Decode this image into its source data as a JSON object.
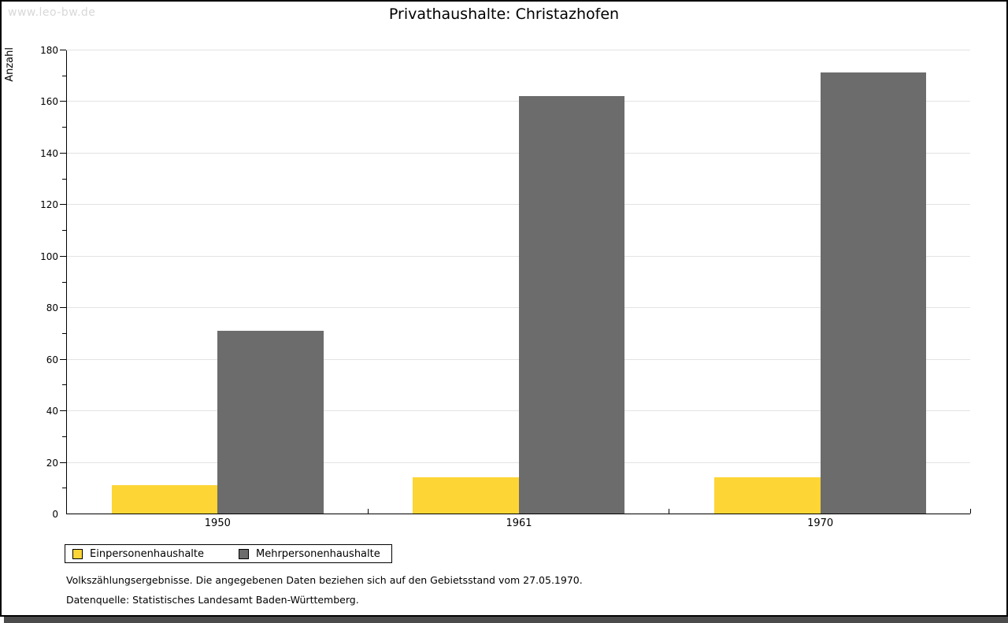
{
  "watermark": "www.leo-bw.de",
  "chart_data": {
    "type": "bar",
    "title": "Privathaushalte: Christazhofen",
    "ylabel": "Anzahl",
    "xlabel": "",
    "categories": [
      "1950",
      "1961",
      "1970"
    ],
    "series": [
      {
        "name": "Einpersonenhaushalte",
        "color": "#FDD535",
        "values": [
          11,
          14,
          14
        ]
      },
      {
        "name": "Mehrpersonenhaushalte",
        "color": "#6C6C6C",
        "values": [
          71,
          162,
          171
        ]
      }
    ],
    "ylim": [
      0,
      180
    ],
    "ytick_step": 20,
    "yminor_step": 10,
    "grid": true,
    "legend_position": "bottom-left",
    "gridline_color": "#e3e3e3"
  },
  "footer": {
    "line1": "Volkszählungsergebnisse. Die angegebenen Daten beziehen sich auf den Gebietsstand vom 27.05.1970.",
    "line2": "Datenquelle: Statistisches Landesamt Baden-Württemberg."
  }
}
